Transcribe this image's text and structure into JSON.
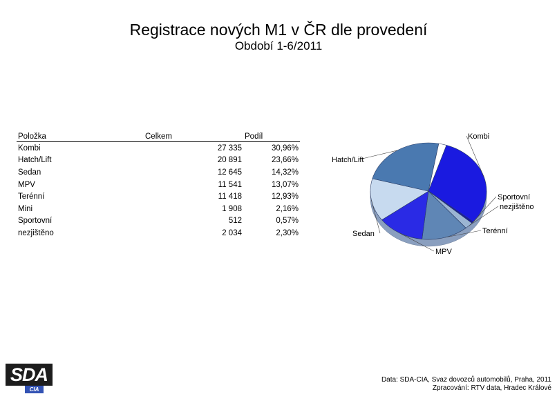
{
  "header": {
    "title": "Registrace nových M1 v ČR dle provedení",
    "subtitle": "Období 1-6/2011"
  },
  "table": {
    "headers": [
      "Položka",
      "Celkem",
      "Podíl"
    ],
    "rows": [
      {
        "item": "Kombi",
        "total": "27 335",
        "share": "30,96%"
      },
      {
        "item": "Hatch/Lift",
        "total": "20 891",
        "share": "23,66%"
      },
      {
        "item": "Sedan",
        "total": "12 645",
        "share": "14,32%"
      },
      {
        "item": "MPV",
        "total": "11 541",
        "share": "13,07%"
      },
      {
        "item": "Terénní",
        "total": "11 418",
        "share": "12,93%"
      },
      {
        "item": "Mini",
        "total": "1 908",
        "share": "2,16%"
      },
      {
        "item": "Sportovní",
        "total": "512",
        "share": "0,57%"
      },
      {
        "item": "nezjištěno",
        "total": "2 034",
        "share": "2,30%"
      }
    ]
  },
  "chart_data": {
    "type": "pie",
    "slices": [
      {
        "label": "Kombi",
        "value": 30.96,
        "color": "#1a1ae0"
      },
      {
        "label": "Sportovní",
        "value": 0.57,
        "color": "#1a1aa0"
      },
      {
        "label": "nezjištěno",
        "value": 2.3,
        "color": "#9bb5d3"
      },
      {
        "label": "Terénní",
        "value": 12.93,
        "color": "#5f86b5"
      },
      {
        "label": "MPV",
        "value": 13.07,
        "color": "#2a2ae5"
      },
      {
        "label": "Sedan",
        "value": 14.32,
        "color": "#c7daef"
      },
      {
        "label": "Hatch/Lift",
        "value": 23.66,
        "color": "#4a79b0"
      },
      {
        "label": "Mini",
        "value": 2.16,
        "color": "#ffffff"
      }
    ]
  },
  "logo": {
    "main": "SDA",
    "sub": "CIA"
  },
  "source": {
    "line1": "Data: SDA-CIA, Svaz dovozců automobilů, Praha, 2011",
    "line2": "Zpracování: RTV data, Hradec Králové"
  }
}
